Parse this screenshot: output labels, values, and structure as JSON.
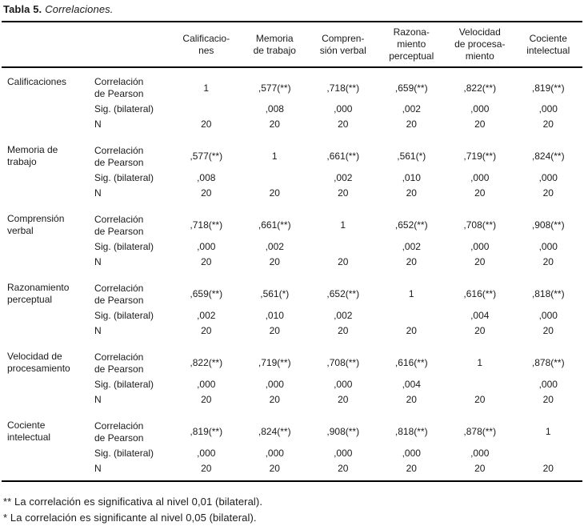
{
  "title": {
    "label": "Tabla 5.",
    "name": "Correlaciones."
  },
  "columns": [
    "Calificacio-\nnes",
    "Memoria\nde trabajo",
    "Compren-\nsión verbal",
    "Razona-\nmiento\nperceptual",
    "Velocidad\nde procesa-\nmiento",
    "Cociente\nintelectual"
  ],
  "labels": {
    "pearson": "Correlación\nde Pearson",
    "sig": "Sig. (bilateral)",
    "n": "N"
  },
  "groups": [
    {
      "label": "Calificaciones",
      "pearson": [
        "1",
        ",577(**)",
        ",718(**)",
        ",659(**)",
        ",822(**)",
        ",819(**)"
      ],
      "sig": [
        "",
        ",008",
        ",000",
        ",002",
        ",000",
        ",000"
      ],
      "n": [
        "20",
        "20",
        "20",
        "20",
        "20",
        "20"
      ]
    },
    {
      "label": "Memoria de\ntrabajo",
      "pearson": [
        ",577(**)",
        "1",
        ",661(**)",
        ",561(*)",
        ",719(**)",
        ",824(**)"
      ],
      "sig": [
        ",008",
        "",
        ",002",
        ",010",
        ",000",
        ",000"
      ],
      "n": [
        "20",
        "20",
        "20",
        "20",
        "20",
        "20"
      ]
    },
    {
      "label": "Comprensión\nverbal",
      "pearson": [
        ",718(**)",
        ",661(**)",
        "1",
        ",652(**)",
        ",708(**)",
        ",908(**)"
      ],
      "sig": [
        ",000",
        ",002",
        "",
        ",002",
        ",000",
        ",000"
      ],
      "n": [
        "20",
        "20",
        "20",
        "20",
        "20",
        "20"
      ]
    },
    {
      "label": "Razonamiento\nperceptual",
      "pearson": [
        ",659(**)",
        ",561(*)",
        ",652(**)",
        "1",
        ",616(**)",
        ",818(**)"
      ],
      "sig": [
        ",002",
        ",010",
        ",002",
        "",
        ",004",
        ",000"
      ],
      "n": [
        "20",
        "20",
        "20",
        "20",
        "20",
        "20"
      ]
    },
    {
      "label": "Velocidad de\nprocesamiento",
      "pearson": [
        ",822(**)",
        ",719(**)",
        ",708(**)",
        ",616(**)",
        "1",
        ",878(**)"
      ],
      "sig": [
        ",000",
        ",000",
        ",000",
        ",004",
        "",
        ",000"
      ],
      "n": [
        "20",
        "20",
        "20",
        "20",
        "20",
        "20"
      ]
    },
    {
      "label": "Cociente\nintelectual",
      "pearson": [
        ",819(**)",
        ",824(**)",
        ",908(**)",
        ",818(**)",
        ",878(**)",
        "1"
      ],
      "sig": [
        ",000",
        ",000",
        ",000",
        ",000",
        ",000",
        ""
      ],
      "n": [
        "20",
        "20",
        "20",
        "20",
        "20",
        "20"
      ]
    }
  ],
  "footnotes": [
    "** La correlación es significativa al nivel 0,01 (bilateral).",
    "* La correlación es significante al nivel 0,05 (bilateral)."
  ]
}
